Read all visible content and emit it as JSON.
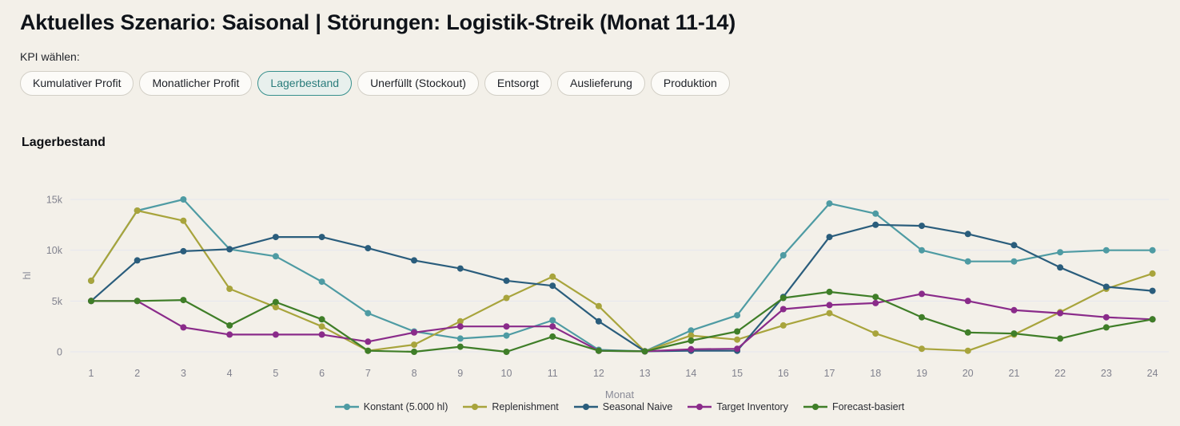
{
  "header": {
    "title": "Aktuelles Szenario: Saisonal | Störungen: Logistik-Streik (Monat 11-14)"
  },
  "kpi_selector": {
    "label": "KPI wählen:",
    "options": [
      {
        "label": "Kumulativer Profit",
        "selected": false
      },
      {
        "label": "Monatlicher Profit",
        "selected": false
      },
      {
        "label": "Lagerbestand",
        "selected": true
      },
      {
        "label": "Unerfüllt (Stockout)",
        "selected": false
      },
      {
        "label": "Entsorgt",
        "selected": false
      },
      {
        "label": "Auslieferung",
        "selected": false
      },
      {
        "label": "Produktion",
        "selected": false
      }
    ]
  },
  "chart": {
    "heading": "Lagerbestand"
  },
  "chart_data": {
    "type": "line",
    "title": "Lagerbestand",
    "xlabel": "Monat",
    "ylabel": "hl",
    "x": [
      1,
      2,
      3,
      4,
      5,
      6,
      7,
      8,
      9,
      10,
      11,
      12,
      13,
      14,
      15,
      16,
      17,
      18,
      19,
      20,
      21,
      22,
      23,
      24
    ],
    "ylim": [
      0,
      15500
    ],
    "yticks": [
      {
        "value": 0,
        "label": "0"
      },
      {
        "value": 5000,
        "label": "5k"
      },
      {
        "value": 10000,
        "label": "10k"
      },
      {
        "value": 15000,
        "label": "15k"
      }
    ],
    "grid": true,
    "legend_position": "bottom",
    "series": [
      {
        "name": "Konstant (5.000 hl)",
        "color": "#4e9ba3",
        "values": [
          7000,
          13900,
          15000,
          10100,
          9400,
          6900,
          3800,
          2000,
          1300,
          1600,
          3100,
          200,
          50,
          2100,
          3600,
          9500,
          14600,
          13600,
          10000,
          8900,
          8900,
          9800,
          10000,
          10000
        ]
      },
      {
        "name": "Replenishment",
        "color": "#a8a43c",
        "values": [
          7000,
          13900,
          12900,
          6200,
          4400,
          2500,
          100,
          700,
          3000,
          5300,
          7400,
          4500,
          50,
          1600,
          1200,
          2600,
          3800,
          1800,
          300,
          100,
          1700,
          3900,
          6200,
          7700
        ]
      },
      {
        "name": "Seasonal Naive",
        "color": "#2a5d7c",
        "values": [
          5000,
          9000,
          9900,
          10100,
          11300,
          11300,
          10200,
          9000,
          8200,
          7000,
          6500,
          3000,
          50,
          100,
          100,
          5400,
          11300,
          12500,
          12400,
          11600,
          10500,
          8300,
          6400,
          6000
        ]
      },
      {
        "name": "Target Inventory",
        "color": "#8a2b8a",
        "values": [
          5000,
          5000,
          2400,
          1700,
          1700,
          1700,
          1000,
          1900,
          2500,
          2500,
          2500,
          100,
          50,
          250,
          300,
          4200,
          4600,
          4800,
          5700,
          5000,
          4100,
          3800,
          3400,
          3200
        ]
      },
      {
        "name": "Forecast-basiert",
        "color": "#3f7e28",
        "values": [
          5000,
          5000,
          5100,
          2600,
          4900,
          3200,
          100,
          0,
          500,
          0,
          1500,
          100,
          50,
          1100,
          2000,
          5300,
          5900,
          5400,
          3400,
          1900,
          1800,
          1300,
          2400,
          3200
        ]
      }
    ]
  },
  "colors": {
    "background": "#f3f0e9",
    "accent_teal": "#37908d",
    "grid_line": "#e6e6ef",
    "tick_text": "#81828e"
  }
}
